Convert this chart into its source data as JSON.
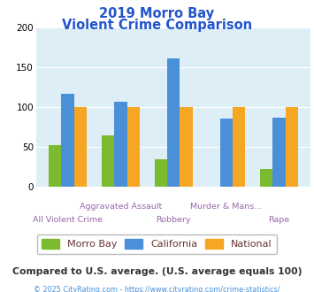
{
  "title_line1": "2019 Morro Bay",
  "title_line2": "Violent Crime Comparison",
  "morro_bay": [
    53,
    65,
    35,
    0,
    22
  ],
  "california": [
    117,
    107,
    162,
    86,
    87
  ],
  "national": [
    100,
    100,
    100,
    100,
    100
  ],
  "colors": {
    "morro_bay": "#7cba2f",
    "california": "#4a90d9",
    "national": "#f5a623"
  },
  "ylim": [
    0,
    200
  ],
  "yticks": [
    0,
    50,
    100,
    150,
    200
  ],
  "title_color": "#2255cc",
  "bg_color": "#ddeef6",
  "label_color": "#9966aa",
  "legend_text_color": "#663333",
  "footer_text": "Compared to U.S. average. (U.S. average equals 100)",
  "copyright_text": "© 2025 CityRating.com - https://www.cityrating.com/crime-statistics/",
  "footer_color": "#333333",
  "copyright_color": "#4a90d9"
}
